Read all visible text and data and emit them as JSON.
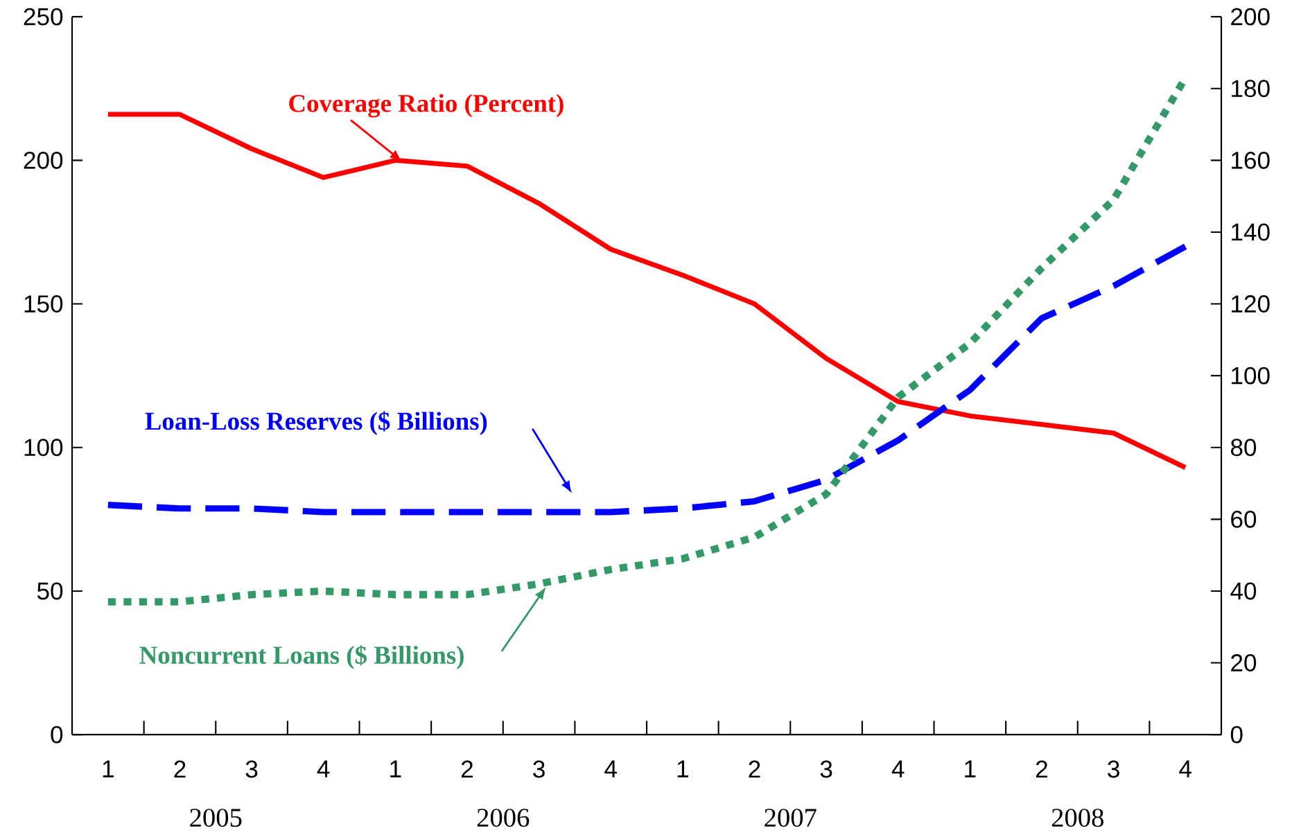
{
  "chart_data": {
    "type": "line",
    "categories": [
      "1",
      "2",
      "3",
      "4",
      "1",
      "2",
      "3",
      "4",
      "1",
      "2",
      "3",
      "4",
      "1",
      "2",
      "3",
      "4"
    ],
    "annotations": [
      "2005",
      "2006",
      "2007",
      "2008"
    ],
    "ylim": [
      0,
      250
    ],
    "yticks": [
      0,
      50,
      100,
      150,
      200,
      250
    ],
    "y2lim": [
      0,
      200
    ],
    "y2ticks": [
      0,
      20,
      40,
      60,
      80,
      100,
      120,
      140,
      160,
      180,
      200
    ],
    "series": [
      {
        "name": "Coverage Ratio (Percent)",
        "color": "#ff0000",
        "line_style": "solid",
        "values": [
          216,
          216,
          204,
          194,
          200,
          198,
          185,
          169,
          160,
          150,
          131,
          116,
          111,
          108,
          105,
          93
        ]
      },
      {
        "name": "Loan-Loss Reserves ($ Billions)",
        "color": "#0000ff",
        "line_style": "dashed",
        "axis": "y2",
        "values": [
          64,
          63,
          63,
          62,
          62,
          62,
          62,
          62,
          63,
          65,
          71,
          82,
          96,
          116,
          125,
          136
        ]
      },
      {
        "name": "Noncurrent Loans ($ Billions)",
        "color": "#339966",
        "line_style": "dotted",
        "axis": "y2",
        "values": [
          37,
          37,
          39,
          40,
          39,
          39,
          42,
          46,
          49,
          55,
          67,
          94,
          109,
          130,
          149,
          183
        ]
      }
    ]
  }
}
